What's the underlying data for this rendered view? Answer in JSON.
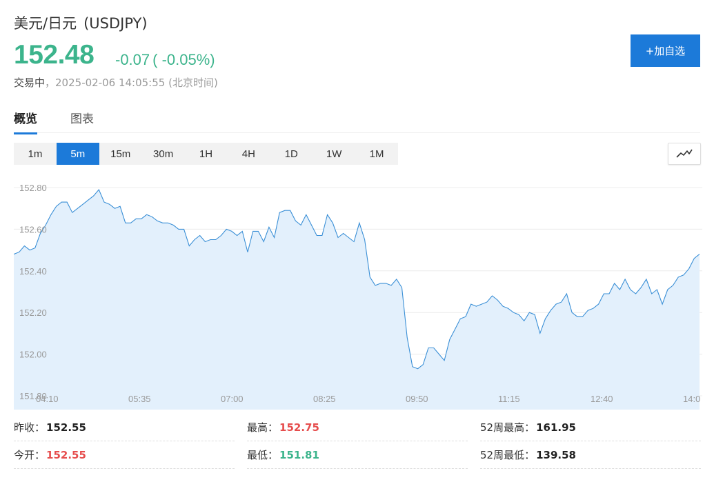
{
  "header": {
    "name": "美元/日元",
    "code": "(USDJPY)",
    "price": "152.48",
    "change": "-0.07",
    "change_pct": "( -0.05%)",
    "status": "交易中",
    "timestamp": "，2025-02-06 14:05:55",
    "tz": "(北京时间)",
    "add_button": "+加自选"
  },
  "tabs": [
    {
      "label": "概览",
      "active": true
    },
    {
      "label": "图表",
      "active": false
    }
  ],
  "periods": [
    "1m",
    "5m",
    "15m",
    "30m",
    "1H",
    "4H",
    "1D",
    "1W",
    "1M"
  ],
  "active_period": "5m",
  "chart_type_icon": "line-chart-icon",
  "colors": {
    "up_green": "#3cb48c",
    "down_red": "#e64d4d",
    "accent_blue": "#1c7ad9",
    "line": "#3a8fd6",
    "fill": "#e3f0fc"
  },
  "stats": [
    {
      "label": "昨收：",
      "value": "152.55",
      "tone": "neutral"
    },
    {
      "label": "最高：",
      "value": "152.75",
      "tone": "red"
    },
    {
      "label": "52周最高：",
      "value": "161.95",
      "tone": "neutral"
    },
    {
      "label": "今开：",
      "value": "152.55",
      "tone": "red"
    },
    {
      "label": "最低：",
      "value": "151.81",
      "tone": "green"
    },
    {
      "label": "52周最低：",
      "value": "139.58",
      "tone": "neutral"
    }
  ],
  "chart_data": {
    "type": "area",
    "ylim": [
      151.8,
      152.8
    ],
    "y_ticks": [
      "152.80",
      "152.60",
      "152.40",
      "152.20",
      "152.00",
      "151.80"
    ],
    "x_ticks": [
      "04:10",
      "05:35",
      "07:00",
      "08:25",
      "09:50",
      "11:15",
      "12:40",
      "14:0"
    ],
    "grid": true,
    "series": [
      {
        "values": [
          152.48,
          152.49,
          152.52,
          152.5,
          152.51,
          152.58,
          152.62,
          152.67,
          152.71,
          152.73,
          152.73,
          152.68,
          152.7,
          152.72,
          152.74,
          152.76,
          152.79,
          152.73,
          152.72,
          152.7,
          152.71,
          152.63,
          152.63,
          152.65,
          152.65,
          152.67,
          152.66,
          152.64,
          152.63,
          152.63,
          152.62,
          152.6,
          152.6,
          152.52,
          152.55,
          152.57,
          152.54,
          152.55,
          152.55,
          152.57,
          152.6,
          152.59,
          152.57,
          152.59,
          152.49,
          152.59,
          152.59,
          152.54,
          152.61,
          152.56,
          152.68,
          152.69,
          152.69,
          152.64,
          152.62,
          152.67,
          152.62,
          152.57,
          152.57,
          152.67,
          152.63,
          152.56,
          152.58,
          152.56,
          152.54,
          152.63,
          152.55,
          152.37,
          152.33,
          152.34,
          152.34,
          152.33,
          152.36,
          152.32,
          152.08,
          151.94,
          151.93,
          151.95,
          152.03,
          152.03,
          152.0,
          151.97,
          152.07,
          152.12,
          152.17,
          152.18,
          152.24,
          152.23,
          152.24,
          152.25,
          152.28,
          152.26,
          152.23,
          152.22,
          152.2,
          152.19,
          152.16,
          152.2,
          152.19,
          152.1,
          152.17,
          152.21,
          152.24,
          152.25,
          152.29,
          152.2,
          152.18,
          152.18,
          152.21,
          152.22,
          152.24,
          152.29,
          152.29,
          152.34,
          152.31,
          152.36,
          152.31,
          152.29,
          152.32,
          152.36,
          152.29,
          152.31,
          152.24,
          152.31,
          152.33,
          152.37,
          152.38,
          152.41,
          152.46,
          152.48
        ]
      }
    ]
  }
}
